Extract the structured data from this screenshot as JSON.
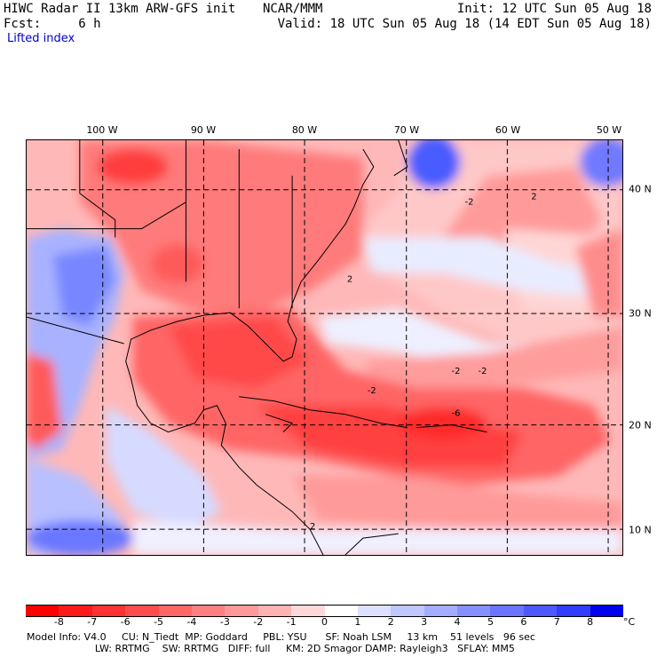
{
  "header": {
    "title": "HIWC Radar II 13km ARW-GFS init",
    "source": "NCAR/MMM",
    "forecast": "Fcst:     6 h",
    "init": "Init: 12 UTC Sun 05 Aug 18",
    "valid": "Valid: 18 UTC Sun 05 Aug 18 (14 EDT Sun 05 Aug 18)",
    "field": "Lifted index"
  },
  "map": {
    "longitude_labels": [
      "100 W",
      "90 W",
      "80 W",
      "70 W",
      "60 W",
      "50 W"
    ],
    "latitude_labels": [
      "40 N",
      "30 N",
      "20 N",
      "10 N"
    ],
    "contour_labels": [
      "-2",
      "-2",
      "-2",
      "-2",
      "-6",
      "2",
      "2",
      "2"
    ]
  },
  "colorbar": {
    "unit": "°C",
    "ticks": [
      "-8",
      "-7",
      "-6",
      "-5",
      "-4",
      "-3",
      "-2",
      "-1",
      "0",
      "1",
      "2",
      "3",
      "4",
      "5",
      "6",
      "7",
      "8"
    ],
    "colors": [
      "#ff0000",
      "#ff1a1a",
      "#ff3333",
      "#ff4d4d",
      "#ff6666",
      "#ff8080",
      "#ff9999",
      "#ffb3b3",
      "#ffd9d9",
      "#ffffff",
      "#dde0ff",
      "#c0c6ff",
      "#a4acff",
      "#8790ff",
      "#6a74ff",
      "#4d58ff",
      "#303cff",
      "#0000ee"
    ]
  },
  "footer": {
    "line1": "Model Info: V4.0     CU: N_Tiedt  MP: Goddard     PBL: YSU      SF: Noah LSM     13 km    51 levels   96 sec",
    "line2": "                      LW: RRTMG    SW: RRTMG   DIFF: full     KM: 2D Smagor DAMP: Rayleigh3   SFLAY: MM5"
  }
}
